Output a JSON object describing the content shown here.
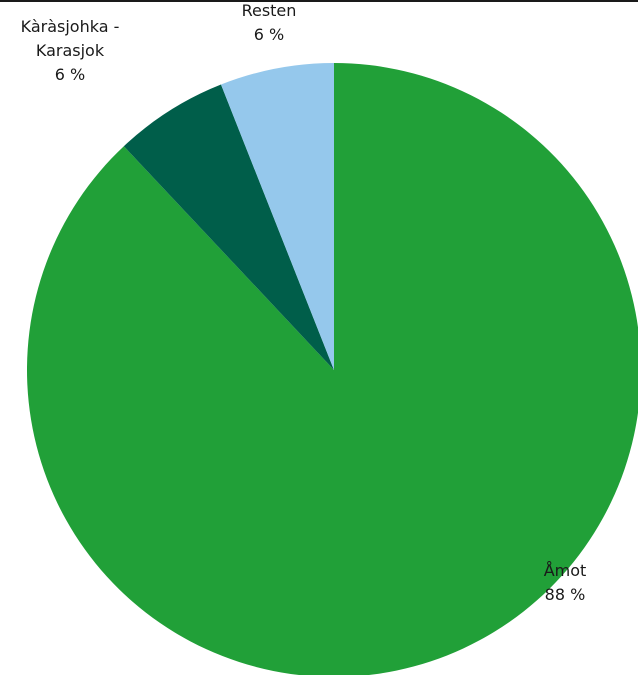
{
  "chart_data": {
    "type": "pie",
    "start_angle_deg": 0,
    "direction": "clockwise",
    "slices": [
      {
        "label": "Åmot",
        "value": 88,
        "value_text": "88 %",
        "color": "#21a038"
      },
      {
        "label": "Kàràsjohka - Karasjok",
        "label_lines": [
          "Kàràsjohka -",
          "Karasjok"
        ],
        "value": 6,
        "value_text": "6 %",
        "color": "#005e4a"
      },
      {
        "label": "Resten",
        "value": 6,
        "value_text": "6 %",
        "color": "#95c8ec"
      }
    ],
    "title": "",
    "legend": "none",
    "labels": "outside"
  }
}
